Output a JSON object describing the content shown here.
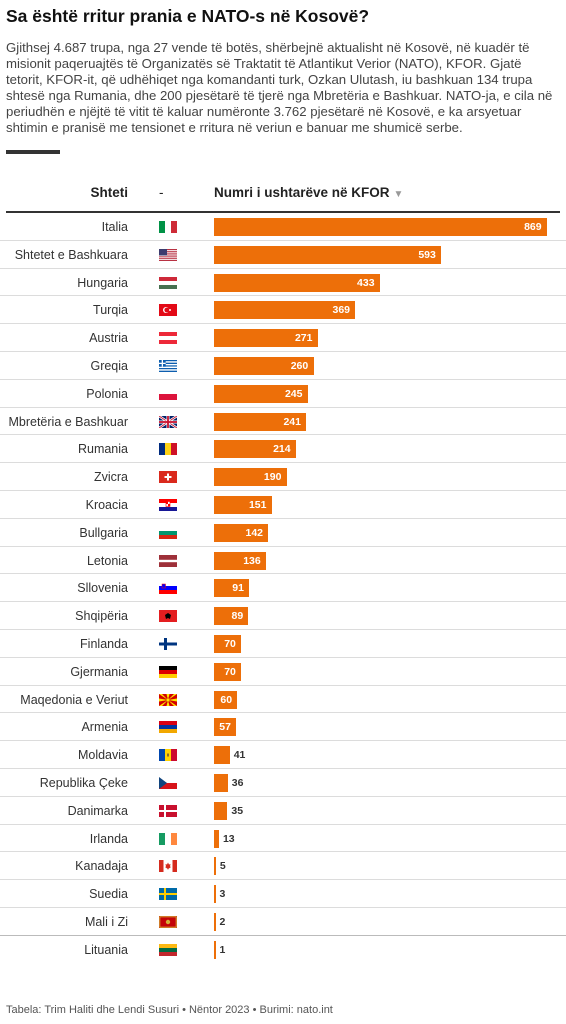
{
  "header": {
    "title": "Sa është rritur prania e NATO-s në Kosovë?",
    "description": "Gjithsej 4.687 trupa, nga 27 vende të botës, shërbejnë aktualisht në Kosovë, në kuadër të misionit paqeruajtës të Organizatës së Traktatit të Atlantikut Verior (NATO), KFOR. Gjatë tetorit, KFOR-it, që udhëhiqet nga komandanti turk, Ozkan Ulutash, iu bashkuan 134 trupa shtesë nga Rumania, dhe 200 pjesëtarë të tjerë nga Mbretëria e Bashkuar. NATO-ja, e cila në periudhën e njëjtë të vitit të kaluar numëronte 3.762 pjesëtarë në Kosovë, e ka arsyetuar shtimin e pranisë me tensionet e rritura në veriun e banuar me shumicë serbe."
  },
  "table_header": {
    "country": "Shteti",
    "flag": "-",
    "value": "Numri i ushtarëve në KFOR",
    "sort_icon": "▼"
  },
  "colors": {
    "bar": "#ed6f09"
  },
  "chart_data": {
    "type": "bar",
    "orientation": "horizontal",
    "categories": [
      "Italia",
      "Shtetet e Bashkuara",
      "Hungaria",
      "Turqia",
      "Austria",
      "Greqia",
      "Polonia",
      "Mbretëria e Bashkuar",
      "Rumania",
      "Zvicra",
      "Kroacia",
      "Bullgaria",
      "Letonia",
      "Sllovenia",
      "Shqipëria",
      "Finlanda",
      "Gjermania",
      "Maqedonia e Veriut",
      "Armenia",
      "Moldavia",
      "Republika Çeke",
      "Danimarka",
      "Irlanda",
      "Kanadaja",
      "Suedia",
      "Mali i Zi",
      "Lituania"
    ],
    "values": [
      869,
      593,
      433,
      369,
      271,
      260,
      245,
      241,
      214,
      190,
      151,
      142,
      136,
      91,
      89,
      70,
      70,
      60,
      57,
      41,
      36,
      35,
      13,
      5,
      3,
      2,
      1
    ],
    "flags": [
      "it",
      "us",
      "hu",
      "tr",
      "at",
      "gr",
      "pl",
      "gb",
      "ro",
      "ch",
      "hr",
      "bg",
      "lv",
      "si",
      "al",
      "fi",
      "de",
      "mk",
      "am",
      "md",
      "cz",
      "dk",
      "ie",
      "ca",
      "se",
      "me",
      "lt"
    ],
    "xlabel": "Numri i ushtarëve në KFOR",
    "xlim": [
      0,
      869
    ]
  },
  "footer": "Tabela: Trim Haliti dhe Lendi Susuri • Nëntor 2023 • Burimi: nato.int"
}
